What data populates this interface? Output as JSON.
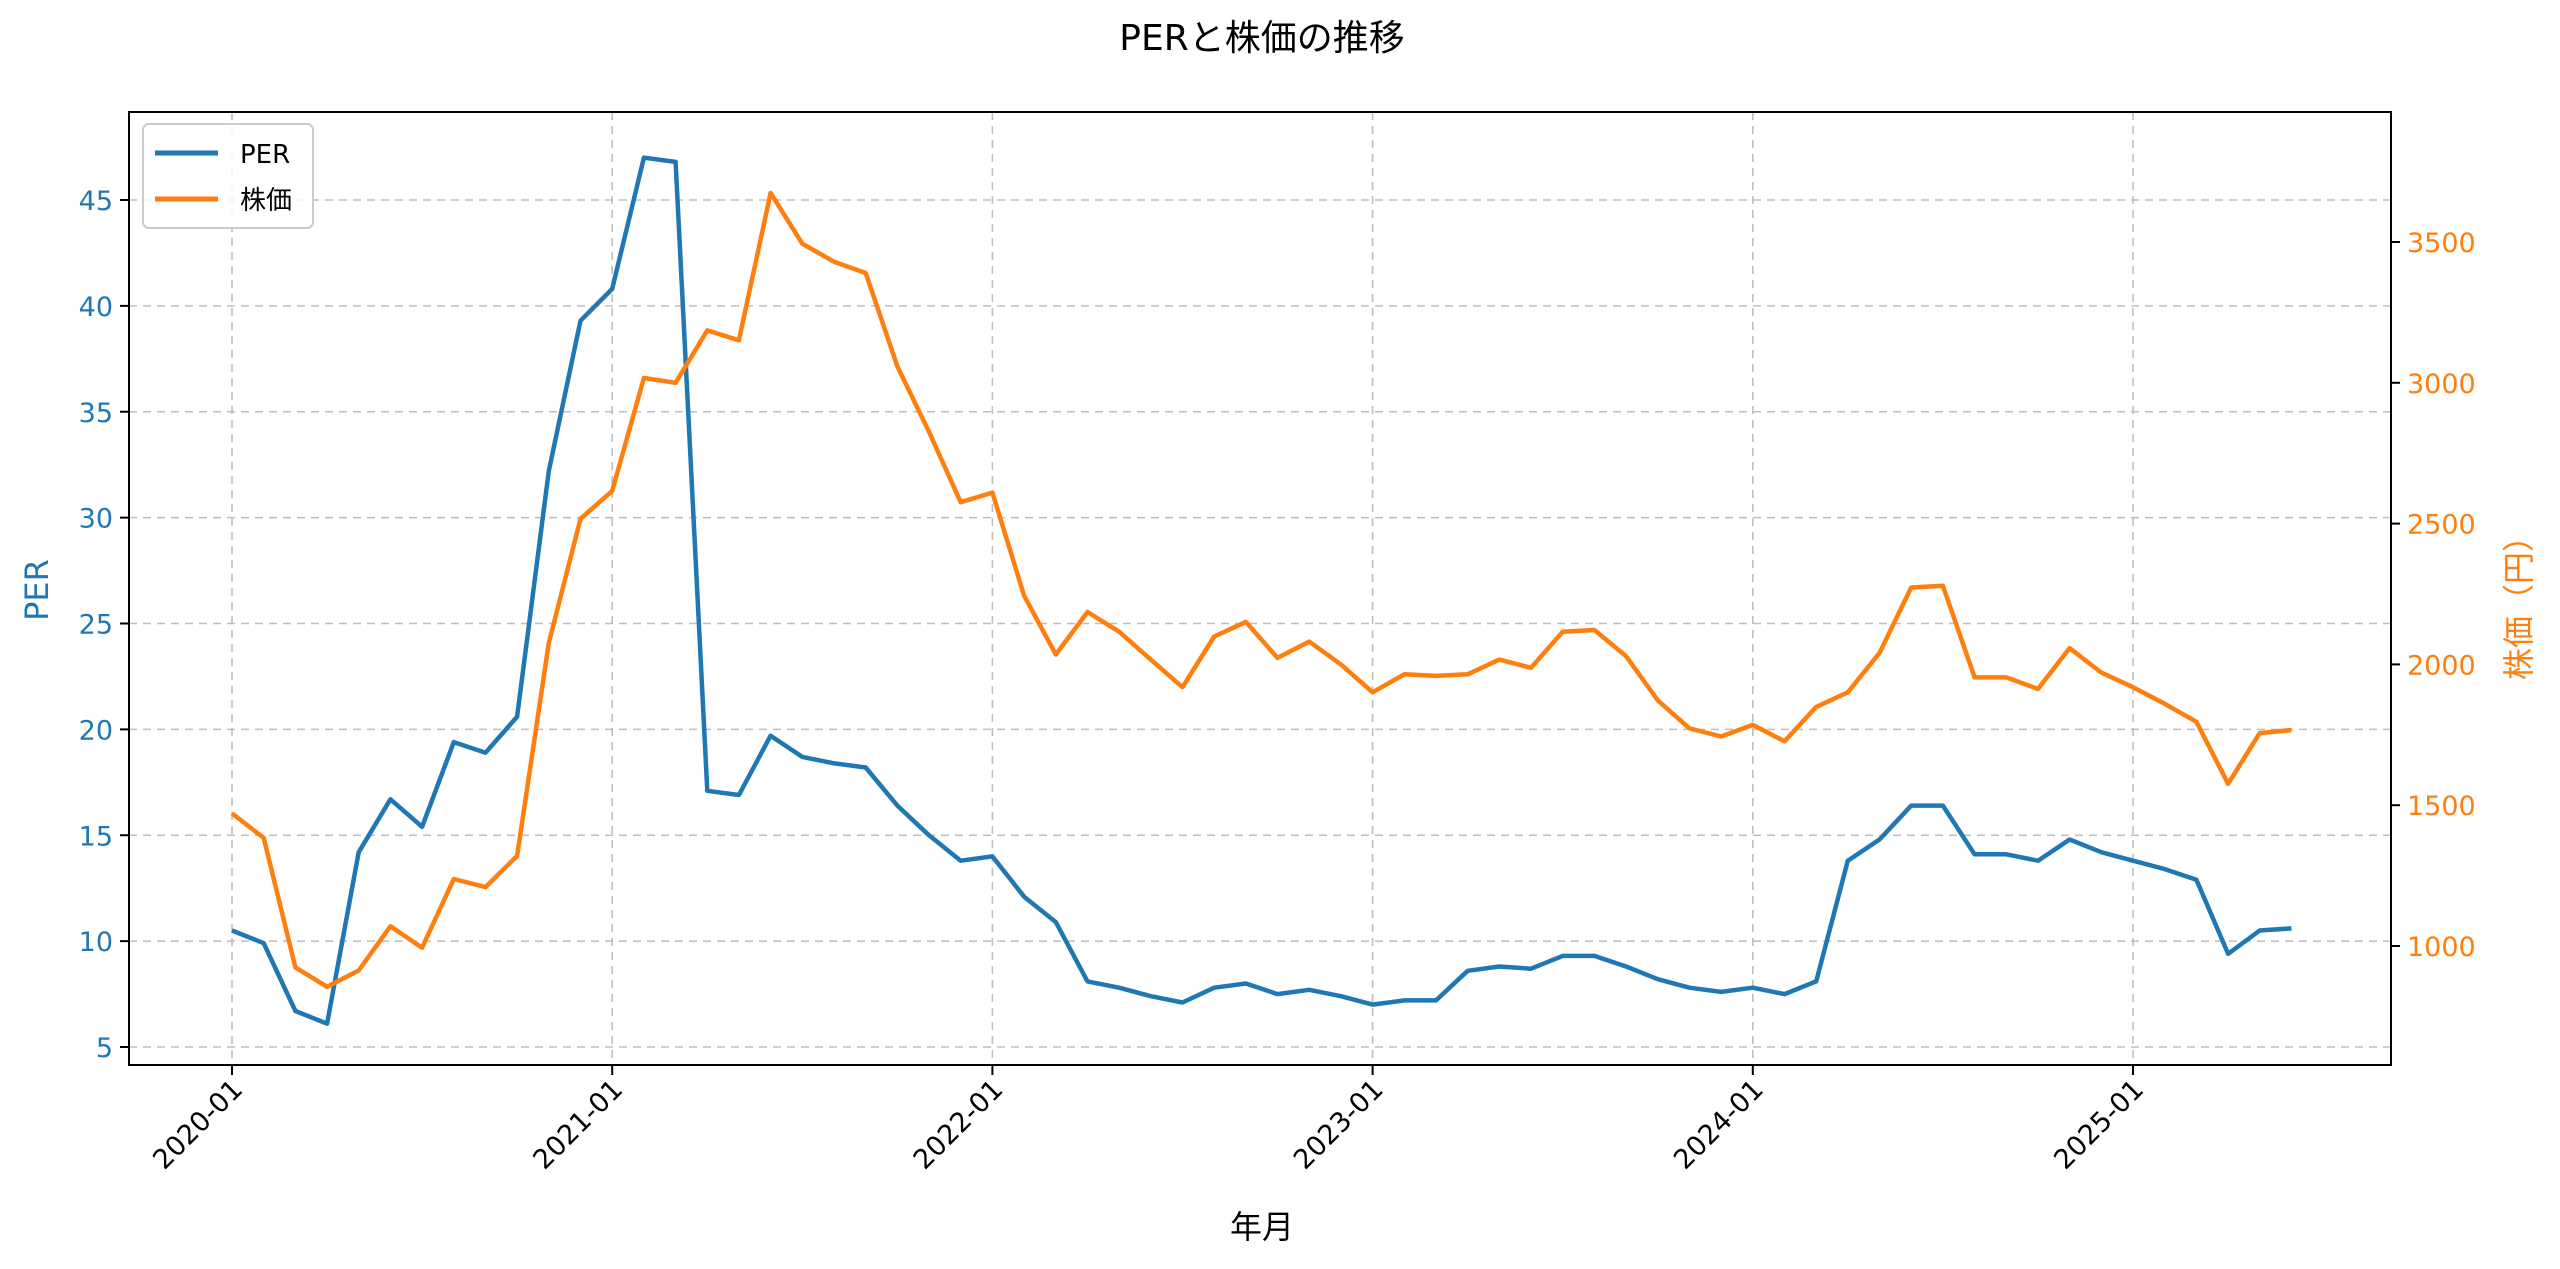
{
  "chart_data": {
    "type": "line",
    "title": "PERと株価の推移",
    "xlabel": "年月",
    "ylabel_left": "PER",
    "ylabel_right": "株価（円）",
    "ylim_left": [
      4.3,
      49.0
    ],
    "ylim_right": [
      620,
      3900
    ],
    "grid": true,
    "legend_position": "upper left",
    "x_ticks": [
      "2020-01",
      "2021-01",
      "2022-01",
      "2023-01",
      "2024-01",
      "2025-01"
    ],
    "y_ticks_left": [
      5,
      10,
      15,
      20,
      25,
      30,
      35,
      40,
      45
    ],
    "y_ticks_right": [
      1000,
      1500,
      2000,
      2500,
      3000,
      3500
    ],
    "x": [
      "2020-01",
      "2020-02",
      "2020-03",
      "2020-04",
      "2020-05",
      "2020-06",
      "2020-07",
      "2020-08",
      "2020-09",
      "2020-10",
      "2020-11",
      "2020-12",
      "2021-01",
      "2021-02",
      "2021-03",
      "2021-04",
      "2021-05",
      "2021-06",
      "2021-07",
      "2021-08",
      "2021-09",
      "2021-10",
      "2021-11",
      "2021-12",
      "2022-01",
      "2022-02",
      "2022-03",
      "2022-04",
      "2022-05",
      "2022-06",
      "2022-07",
      "2022-08",
      "2022-09",
      "2022-10",
      "2022-11",
      "2022-12",
      "2023-01",
      "2023-02",
      "2023-03",
      "2023-04",
      "2023-05",
      "2023-06",
      "2023-07",
      "2023-08",
      "2023-09",
      "2023-10",
      "2023-11",
      "2023-12",
      "2024-01",
      "2024-02",
      "2024-03",
      "2024-04",
      "2024-05",
      "2024-06",
      "2024-07",
      "2024-08",
      "2024-09",
      "2024-10",
      "2024-11",
      "2024-12",
      "2025-01",
      "2025-02",
      "2025-03",
      "2025-04",
      "2025-05",
      "2025-06"
    ],
    "series": [
      {
        "name": "PER",
        "axis": "left",
        "color": "#1f77b4",
        "values": [
          10.5,
          9.9,
          6.7,
          6.1,
          14.2,
          16.7,
          15.4,
          19.4,
          18.9,
          20.6,
          32.2,
          39.3,
          40.8,
          47.0,
          46.8,
          17.1,
          16.9,
          19.7,
          18.7,
          18.4,
          18.2,
          16.4,
          15.0,
          13.8,
          14.0,
          12.1,
          10.9,
          8.1,
          7.8,
          7.4,
          7.1,
          7.8,
          8.0,
          7.5,
          7.7,
          7.4,
          7.0,
          7.2,
          7.2,
          8.6,
          8.8,
          8.7,
          9.3,
          9.3,
          8.8,
          8.2,
          7.8,
          7.6,
          7.8,
          7.5,
          8.1,
          13.8,
          14.8,
          16.4,
          16.4,
          14.1,
          14.1,
          13.8,
          14.8,
          14.2,
          13.8,
          13.4,
          12.9,
          9.4,
          10.5,
          10.6
        ]
      },
      {
        "name": "株価",
        "axis": "right",
        "color": "#ff7f0e",
        "values": [
          1471,
          1384,
          924,
          855,
          913,
          1070,
          994,
          1238,
          1209,
          1320,
          2076,
          2517,
          2616,
          3017,
          3000,
          3186,
          3151,
          3674,
          3494,
          3430,
          3390,
          3058,
          2826,
          2576,
          2610,
          2244,
          2035,
          2186,
          2116,
          2017,
          1919,
          2099,
          2151,
          2023,
          2081,
          2000,
          1901,
          1965,
          1959,
          1965,
          2017,
          1988,
          2116,
          2122,
          2029,
          1872,
          1773,
          1744,
          1785,
          1727,
          1849,
          1901,
          2041,
          2273,
          2279,
          1954,
          1954,
          1913,
          2058,
          1971,
          1919,
          1860,
          1796,
          1576,
          1756,
          1767
        ]
      }
    ]
  },
  "legend": {
    "items": [
      {
        "label": "PER",
        "color": "#1f77b4"
      },
      {
        "label": "株価",
        "color": "#ff7f0e"
      }
    ]
  }
}
